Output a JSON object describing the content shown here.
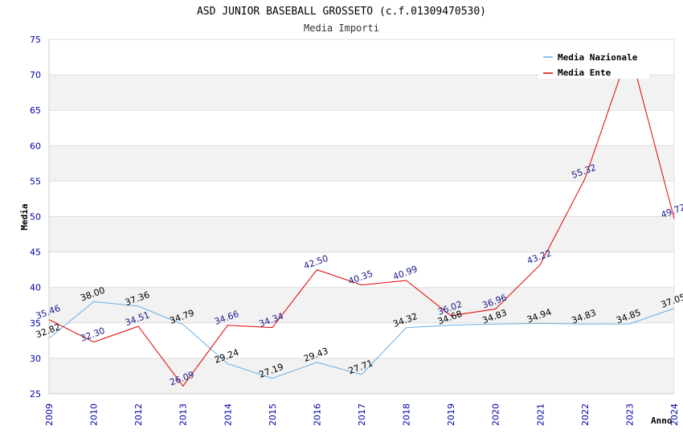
{
  "chart_data": {
    "type": "line",
    "title": "ASD JUNIOR BASEBALL GROSSETO (c.f.01309470530)",
    "subtitle": "Media Importi",
    "xlabel": "Anno",
    "ylabel": "Media",
    "categories": [
      "2009",
      "2010",
      "2012",
      "2013",
      "2014",
      "2015",
      "2016",
      "2017",
      "2018",
      "2019",
      "2020",
      "2021",
      "2022",
      "2023",
      "2024"
    ],
    "ylim": [
      25,
      75
    ],
    "yticks": [
      25,
      30,
      35,
      40,
      45,
      50,
      55,
      60,
      65,
      70,
      75
    ],
    "grid": true,
    "legend_position": "top-right",
    "series": [
      {
        "name": "Media Nazionale",
        "color": "#6aaee0",
        "label_color": "#000000",
        "values": [
          32.82,
          38.0,
          37.36,
          34.79,
          29.24,
          27.19,
          29.43,
          27.71,
          34.32,
          34.68,
          34.83,
          34.94,
          34.83,
          34.85,
          37.05
        ],
        "labels": [
          "32.82",
          "38.00",
          "37.36",
          "34.79",
          "29.24",
          "27.19",
          "29.43",
          "27.71",
          "34.32",
          "34.68",
          "34.83",
          "34.94",
          "34.83",
          "34.85",
          "37.05"
        ]
      },
      {
        "name": "Media Ente",
        "color": "#e00000",
        "label_color": "#1a1a8c",
        "values": [
          35.46,
          32.3,
          34.51,
          26.09,
          34.66,
          34.34,
          42.5,
          40.35,
          40.99,
          36.02,
          36.96,
          43.22,
          55.32,
          73.6,
          49.72
        ],
        "labels": [
          "35.46",
          "32.30",
          "34.51",
          "26.09",
          "34.66",
          "34.34",
          "42.50",
          "40.35",
          "40.99",
          "36.02",
          "36.96",
          "43.22",
          "55.32",
          "",
          "49.72"
        ]
      }
    ]
  }
}
